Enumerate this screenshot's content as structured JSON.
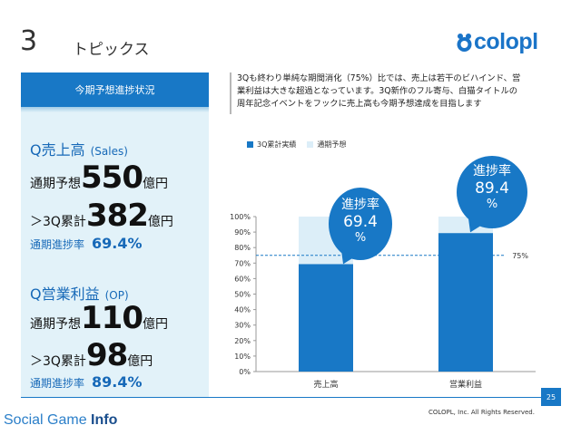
{
  "header": {
    "number": "3",
    "title": "トピックス"
  },
  "logo": {
    "text": "colopl"
  },
  "left_panel": {
    "heading": "今期予想進捗状況",
    "sales": {
      "title": "Q売上高",
      "title_en": "(Sales)",
      "forecast_label": "通期予想",
      "forecast_value": "550",
      "forecast_unit": "億円",
      "actual_label": "＞3Q累計",
      "actual_value": "382",
      "actual_unit": "億円",
      "rate_label": "通期進捗率",
      "rate_value": "69.4%"
    },
    "op": {
      "title": "Q営業利益",
      "title_en": "(OP)",
      "forecast_label": "通期予想",
      "forecast_value": "110",
      "forecast_unit": "億円",
      "actual_label": "＞3Q累計",
      "actual_value": "98",
      "actual_unit": "億円",
      "rate_label": "通期進捗率",
      "rate_value": "89.4%"
    }
  },
  "description": {
    "lines": [
      "3Qも終わり単純な期間消化（75%）比では、売上は若干のビハインド、営",
      "業利益は大きな超過となっています。3Q新作のフル寄与、白猫タイトルの",
      "周年記念イベントをフックに売上高も今期予想達成を目指します"
    ]
  },
  "chart_data": {
    "type": "bar",
    "stacked": true,
    "categories": [
      "売上高",
      "営業利益"
    ],
    "series": [
      {
        "name": "3Q累計実績",
        "values": [
          69.4,
          89.4
        ],
        "color": "#1878c6"
      },
      {
        "name": "通期予想",
        "values": [
          30.6,
          10.6
        ],
        "color": "#dceef8"
      }
    ],
    "yticks": [
      "0%",
      "10%",
      "20%",
      "30%",
      "40%",
      "50%",
      "60%",
      "70%",
      "80%",
      "90%",
      "100%"
    ],
    "ylim": [
      0,
      100
    ],
    "reference_line": {
      "value": 75,
      "label": "75%"
    },
    "legend_position": "top-left",
    "callouts": [
      {
        "title": "進捗率",
        "value": "69.4",
        "unit": "%"
      },
      {
        "title": "進捗率",
        "value": "89.4",
        "unit": "%"
      }
    ]
  },
  "footer": {
    "page": "25",
    "copyright": "COLOPL, Inc. All Rights Reserved.",
    "watermark_a": "Social Game ",
    "watermark_b": "Info"
  }
}
